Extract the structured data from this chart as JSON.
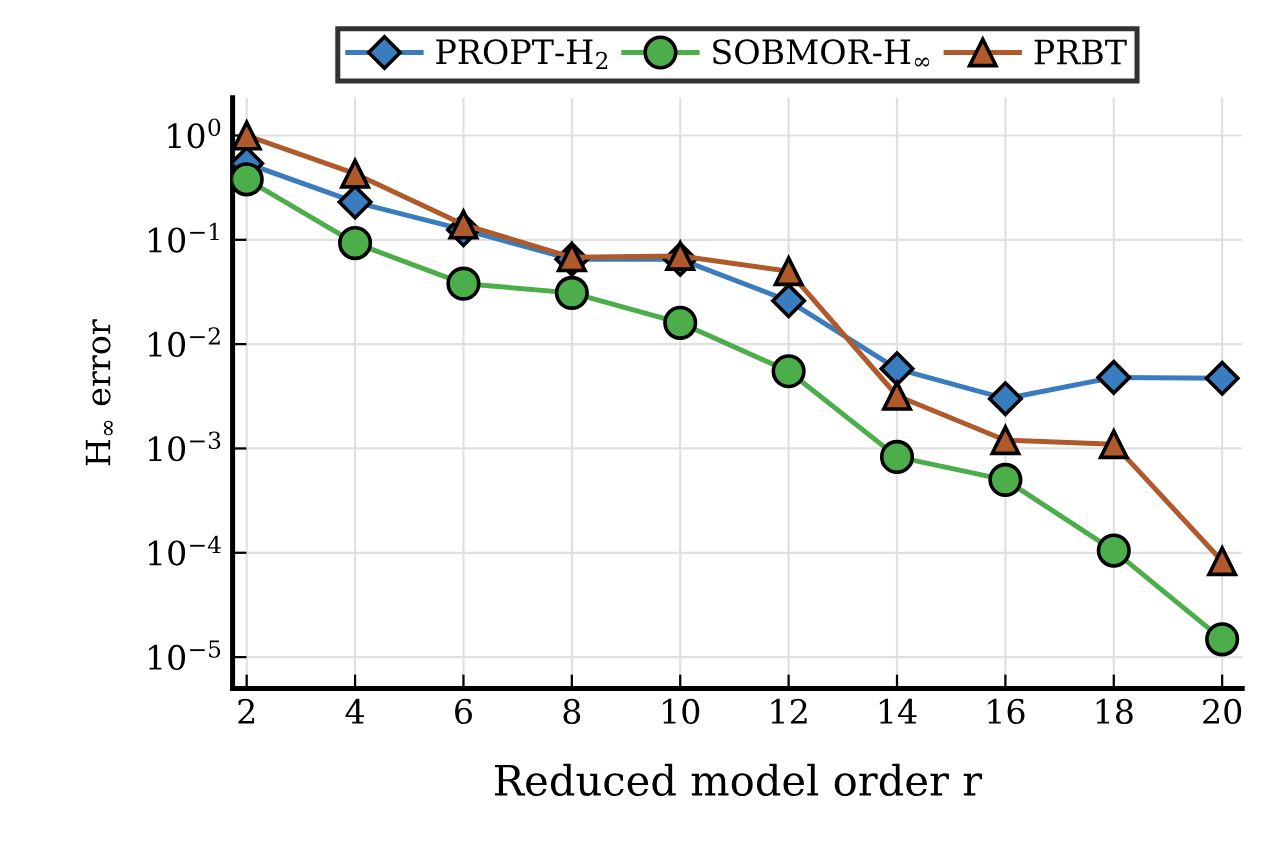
{
  "chart_data": {
    "type": "line",
    "xlabel": "Reduced model order r",
    "ylabel": "H$_{∞}$ error",
    "x": [
      2,
      4,
      6,
      8,
      10,
      12,
      14,
      16,
      18,
      20
    ],
    "series": [
      {
        "name": "PROPT-H$_{2}$",
        "color": "#3a7dbf",
        "marker": "diamond",
        "values": [
          0.54,
          0.23,
          0.125,
          0.065,
          0.065,
          0.026,
          0.0058,
          0.003,
          0.0048,
          0.0047
        ]
      },
      {
        "name": "SOBMOR-H$_{∞}$",
        "color": "#4bae4a",
        "marker": "circle",
        "values": [
          0.38,
          0.093,
          0.038,
          0.031,
          0.016,
          0.0055,
          0.00083,
          0.0005,
          0.000105,
          1.48e-05
        ]
      },
      {
        "name": "PRBT",
        "color": "#b0592a",
        "marker": "triangle",
        "values": [
          1.0,
          0.43,
          0.14,
          0.068,
          0.07,
          0.05,
          0.0032,
          0.0012,
          0.0011,
          8.3e-05
        ]
      }
    ],
    "log": "y",
    "xlim": [
      1.74,
      20.37
    ],
    "ylim": [
      5e-06,
      2.3
    ],
    "xticks": [
      2,
      4,
      6,
      8,
      10,
      12,
      14,
      16,
      18,
      20
    ],
    "yticks": [
      {
        "value": 1e-05,
        "label": "10$^{−5}$"
      },
      {
        "value": 0.0001,
        "label": "10$^{−4}$"
      },
      {
        "value": 0.001,
        "label": "10$^{−3}$"
      },
      {
        "value": 0.01,
        "label": "10$^{−2}$"
      },
      {
        "value": 0.1,
        "label": "10$^{−1}$"
      },
      {
        "value": 1,
        "label": "10$^{0}$"
      }
    ],
    "grid": true,
    "legend": "top",
    "line_style": "solid"
  }
}
